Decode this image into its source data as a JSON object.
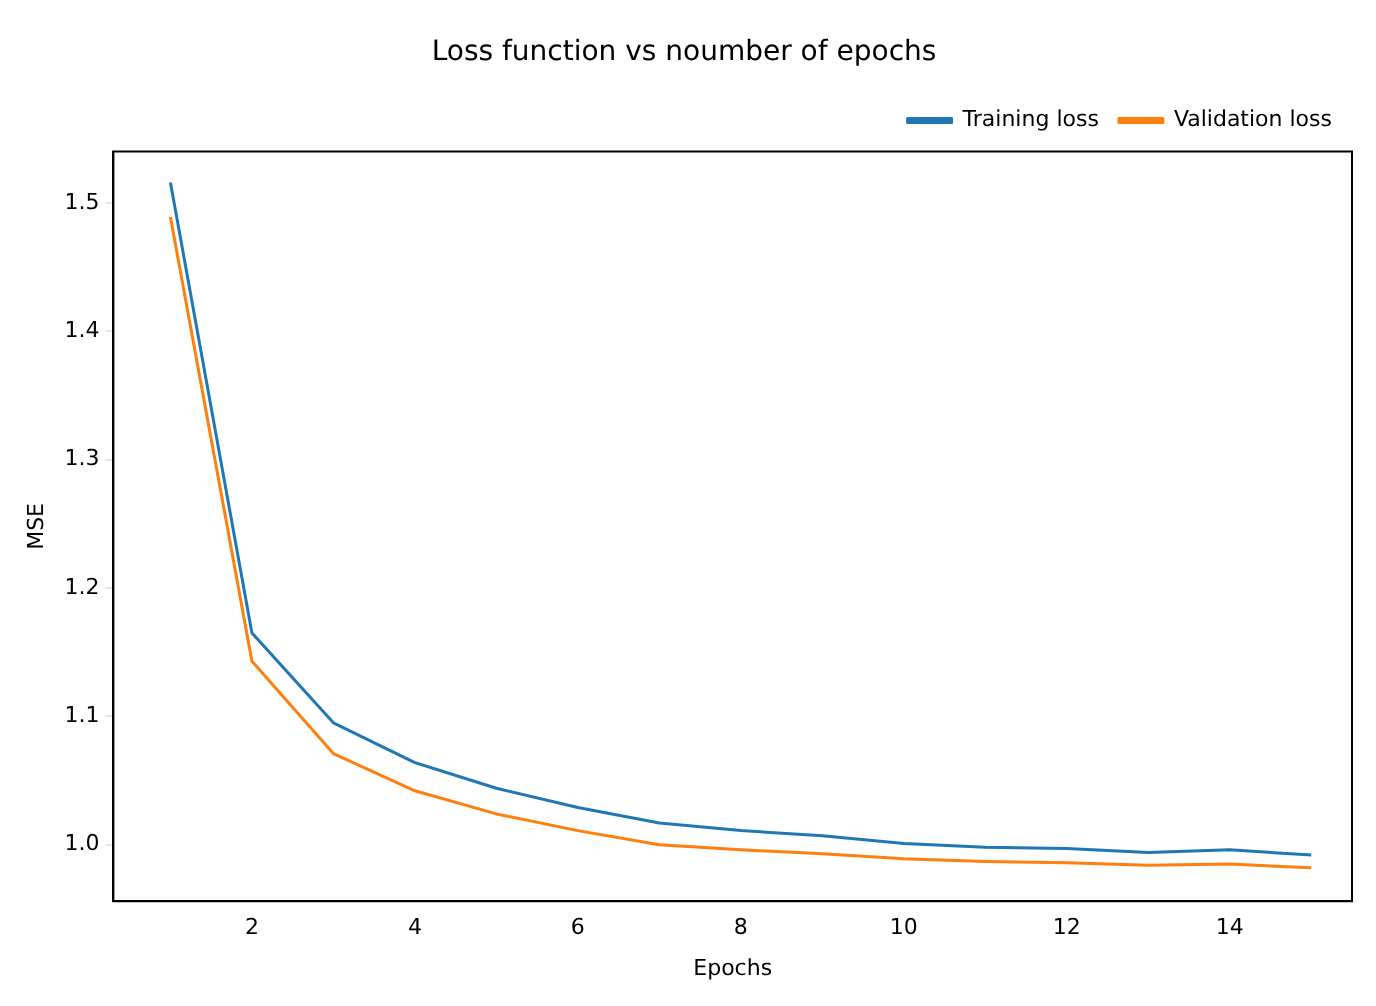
{
  "chart_data": {
    "type": "line",
    "title": "Loss function vs noumber of epochs",
    "xlabel": "Epochs",
    "ylabel": "MSE",
    "x": [
      1,
      2,
      3,
      4,
      5,
      6,
      7,
      8,
      9,
      10,
      11,
      12,
      13,
      14,
      15
    ],
    "series": [
      {
        "name": "Training loss",
        "color": "#1f77b4",
        "values": [
          1.516,
          1.165,
          1.095,
          1.064,
          1.044,
          1.029,
          1.017,
          1.011,
          1.007,
          1.001,
          0.998,
          0.997,
          0.994,
          0.996,
          0.992
        ]
      },
      {
        "name": "Validation loss",
        "color": "#ff7f0e",
        "values": [
          1.489,
          1.143,
          1.071,
          1.042,
          1.024,
          1.011,
          1.0,
          0.996,
          0.993,
          0.989,
          0.987,
          0.986,
          0.984,
          0.985,
          0.982
        ]
      }
    ],
    "xlim": [
      0.3,
      15.5
    ],
    "xticks": [
      2,
      4,
      6,
      8,
      10,
      12,
      14
    ],
    "ylim": [
      0.956,
      1.54
    ],
    "yticks": [
      {
        "value": 1.0,
        "label": "1.0"
      },
      {
        "value": 1.1,
        "label": "1.1"
      },
      {
        "value": 1.2,
        "label": "1.2"
      },
      {
        "value": 1.3,
        "label": "1.3"
      },
      {
        "value": 1.4,
        "label": "1.4"
      },
      {
        "value": 1.5,
        "label": "1.5"
      }
    ],
    "grid": false,
    "legend": "top right",
    "marker": "none",
    "line_style": "solid"
  }
}
